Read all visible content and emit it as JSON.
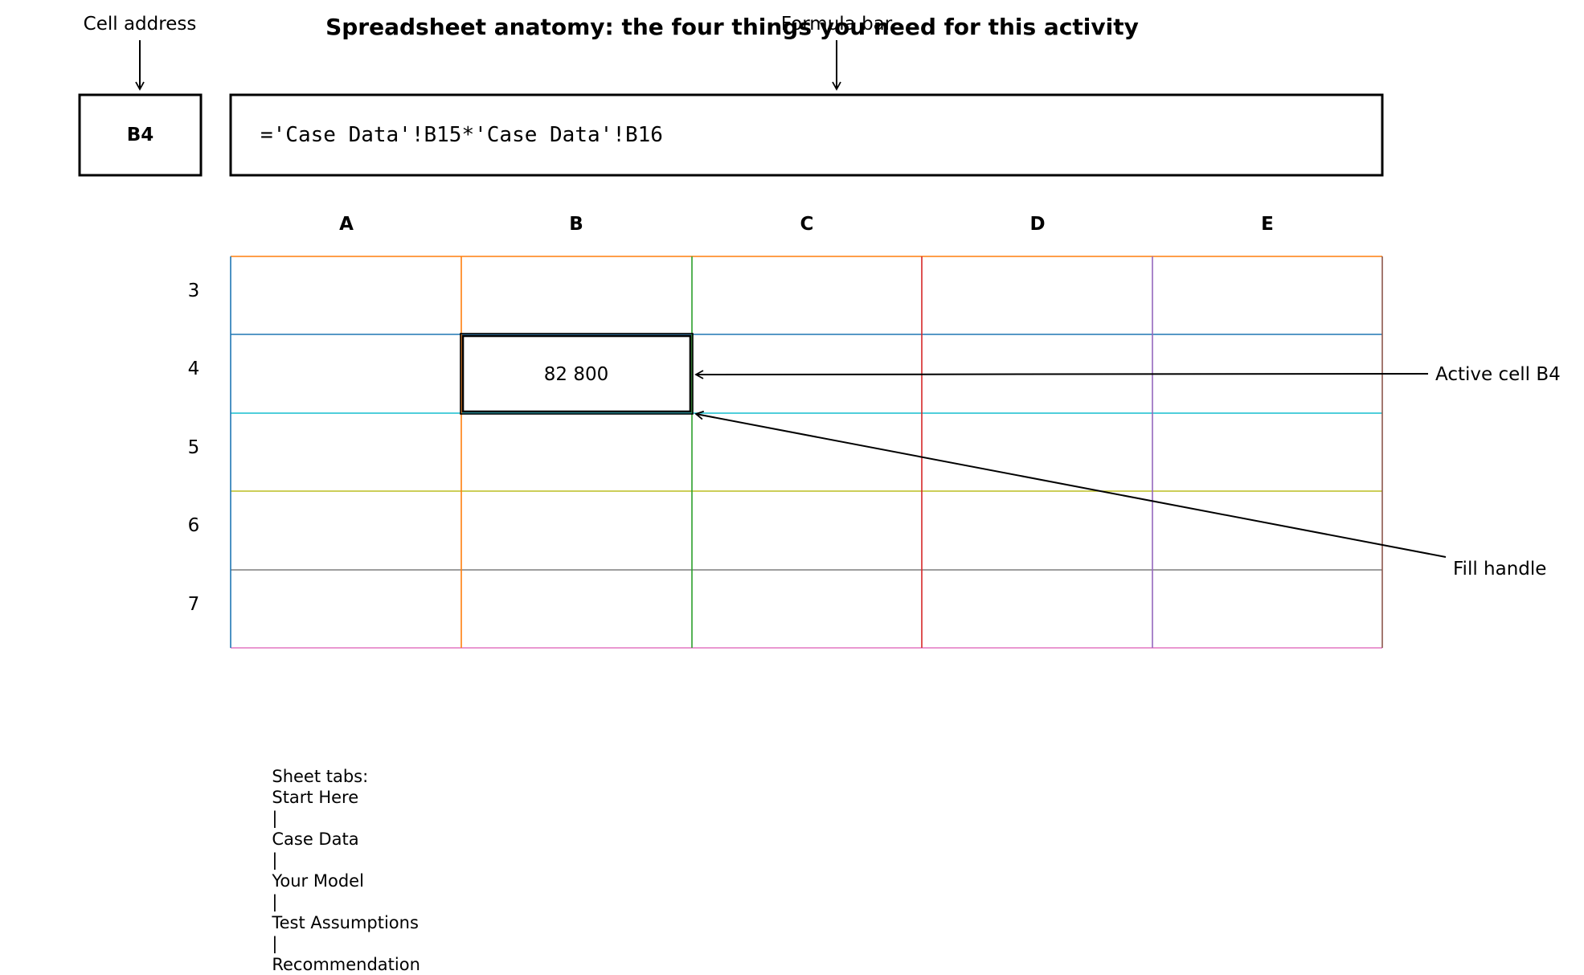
{
  "title": "Spreadsheet anatomy: the four things you need for this activity",
  "callouts": {
    "cell_address": "Cell address",
    "formula_bar": "Formula bar",
    "active_cell": "Active cell B4",
    "fill_handle": "Fill handle"
  },
  "name_box": {
    "value": "B4"
  },
  "formula_bar": {
    "value": "='Case Data'!B15*'Case Data'!B16"
  },
  "grid": {
    "columns": [
      "A",
      "B",
      "C",
      "D",
      "E"
    ],
    "rows": [
      "3",
      "4",
      "5",
      "6",
      "7"
    ],
    "active_cell": {
      "ref": "B4",
      "value": "82 800"
    },
    "line_colors": {
      "col_A_left": "#1f77b4",
      "col_B_left": "#ff7f0e",
      "col_C_left": "#2ca02c",
      "col_D_left": "#d62728",
      "col_E_left": "#9467bd",
      "col_E_right": "#8c564b",
      "row_3_top": "#ff7f0e",
      "row_4_top": "#1f77b4",
      "row_5_top": "#17becf",
      "row_6_top": "#bcbd22",
      "row_7_top": "#7f7f7f",
      "row_7_bottom": "#e377c2"
    }
  },
  "sheet_tabs": {
    "label": "Sheet tabs:",
    "tabs": [
      "Start Here",
      "Case Data",
      "Your Model",
      "Test Assumptions",
      "Recommendation"
    ],
    "separator": "|"
  }
}
